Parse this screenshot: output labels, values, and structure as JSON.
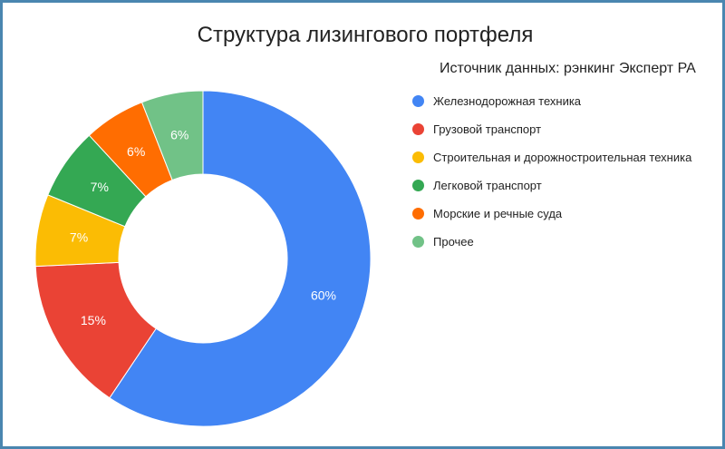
{
  "chart_data": {
    "type": "pie",
    "title": "Структура лизингового портфеля",
    "subtitle": "Источник данных: рэнкинг Эксперт РА",
    "legend_position": "right",
    "donut": true,
    "categories": [
      "Железнодорожная техника",
      "Грузовой транспорт",
      "Строительная и дорожностроительная техника",
      "Легковой транспорт",
      "Морские и речные суда",
      "Прочее"
    ],
    "values": [
      60,
      15,
      7,
      7,
      6,
      6
    ],
    "labels": [
      "60%",
      "15%",
      "7%",
      "7%",
      "6%",
      "6%"
    ],
    "colors": [
      "#4285f4",
      "#ea4335",
      "#fbbc04",
      "#34a853",
      "#ff6d01",
      "#71c287"
    ]
  }
}
